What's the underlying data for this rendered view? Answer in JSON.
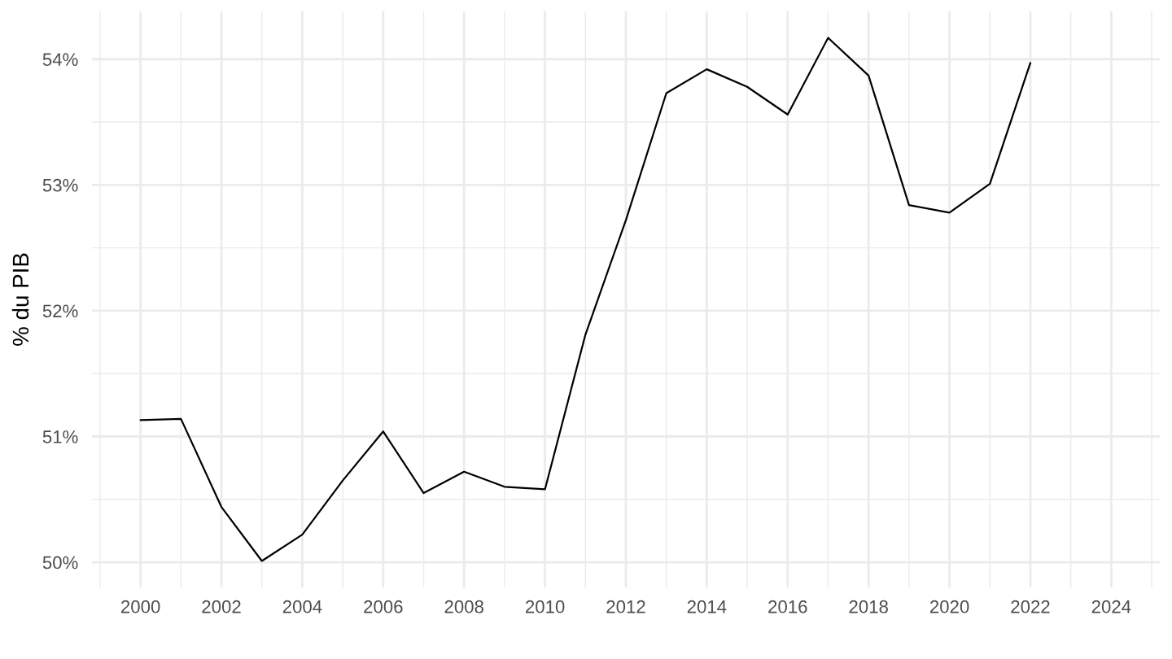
{
  "chart_data": {
    "type": "line",
    "ylabel": "% du PIB",
    "x": [
      2000,
      2001,
      2002,
      2003,
      2004,
      2005,
      2006,
      2007,
      2008,
      2009,
      2010,
      2011,
      2012,
      2013,
      2014,
      2015,
      2016,
      2017,
      2018,
      2019,
      2020,
      2021,
      2022
    ],
    "series": [
      {
        "color": "#000000",
        "values": [
          51.13,
          51.14,
          50.44,
          50.01,
          50.22,
          50.65,
          51.04,
          50.55,
          50.72,
          50.6,
          50.58,
          51.81,
          52.72,
          53.73,
          53.92,
          53.78,
          53.56,
          54.17,
          53.87,
          52.84,
          52.78,
          53.01,
          53.97
        ]
      }
    ],
    "xlim": [
      1998.8,
      2025.2
    ],
    "ylim": [
      49.8,
      54.38
    ],
    "xticks": [
      {
        "value": 1999,
        "label": null
      },
      2000,
      {
        "value": 2001,
        "label": null
      },
      2002,
      {
        "value": 2003,
        "label": null
      },
      2004,
      {
        "value": 2005,
        "label": null
      },
      2006,
      {
        "value": 2007,
        "label": null
      },
      2008,
      {
        "value": 2009,
        "label": null
      },
      2010,
      {
        "value": 2011,
        "label": null
      },
      2012,
      {
        "value": 2013,
        "label": null
      },
      2014,
      {
        "value": 2015,
        "label": null
      },
      2016,
      {
        "value": 2017,
        "label": null
      },
      2018,
      {
        "value": 2019,
        "label": null
      },
      2020,
      {
        "value": 2021,
        "label": null
      },
      2022,
      {
        "value": 2023,
        "label": null
      },
      2024,
      {
        "value": 2025,
        "label": null
      }
    ],
    "yticks": [
      {
        "value": 50,
        "label": "50%"
      },
      {
        "value": 50.5,
        "label": null
      },
      {
        "value": 51,
        "label": "51%"
      },
      {
        "value": 51.5,
        "label": null
      },
      {
        "value": 52,
        "label": "52%"
      },
      {
        "value": 52.5,
        "label": null
      },
      {
        "value": 53,
        "label": "53%"
      },
      {
        "value": 53.5,
        "label": null
      },
      {
        "value": 54,
        "label": "54%"
      }
    ],
    "grid": true
  }
}
